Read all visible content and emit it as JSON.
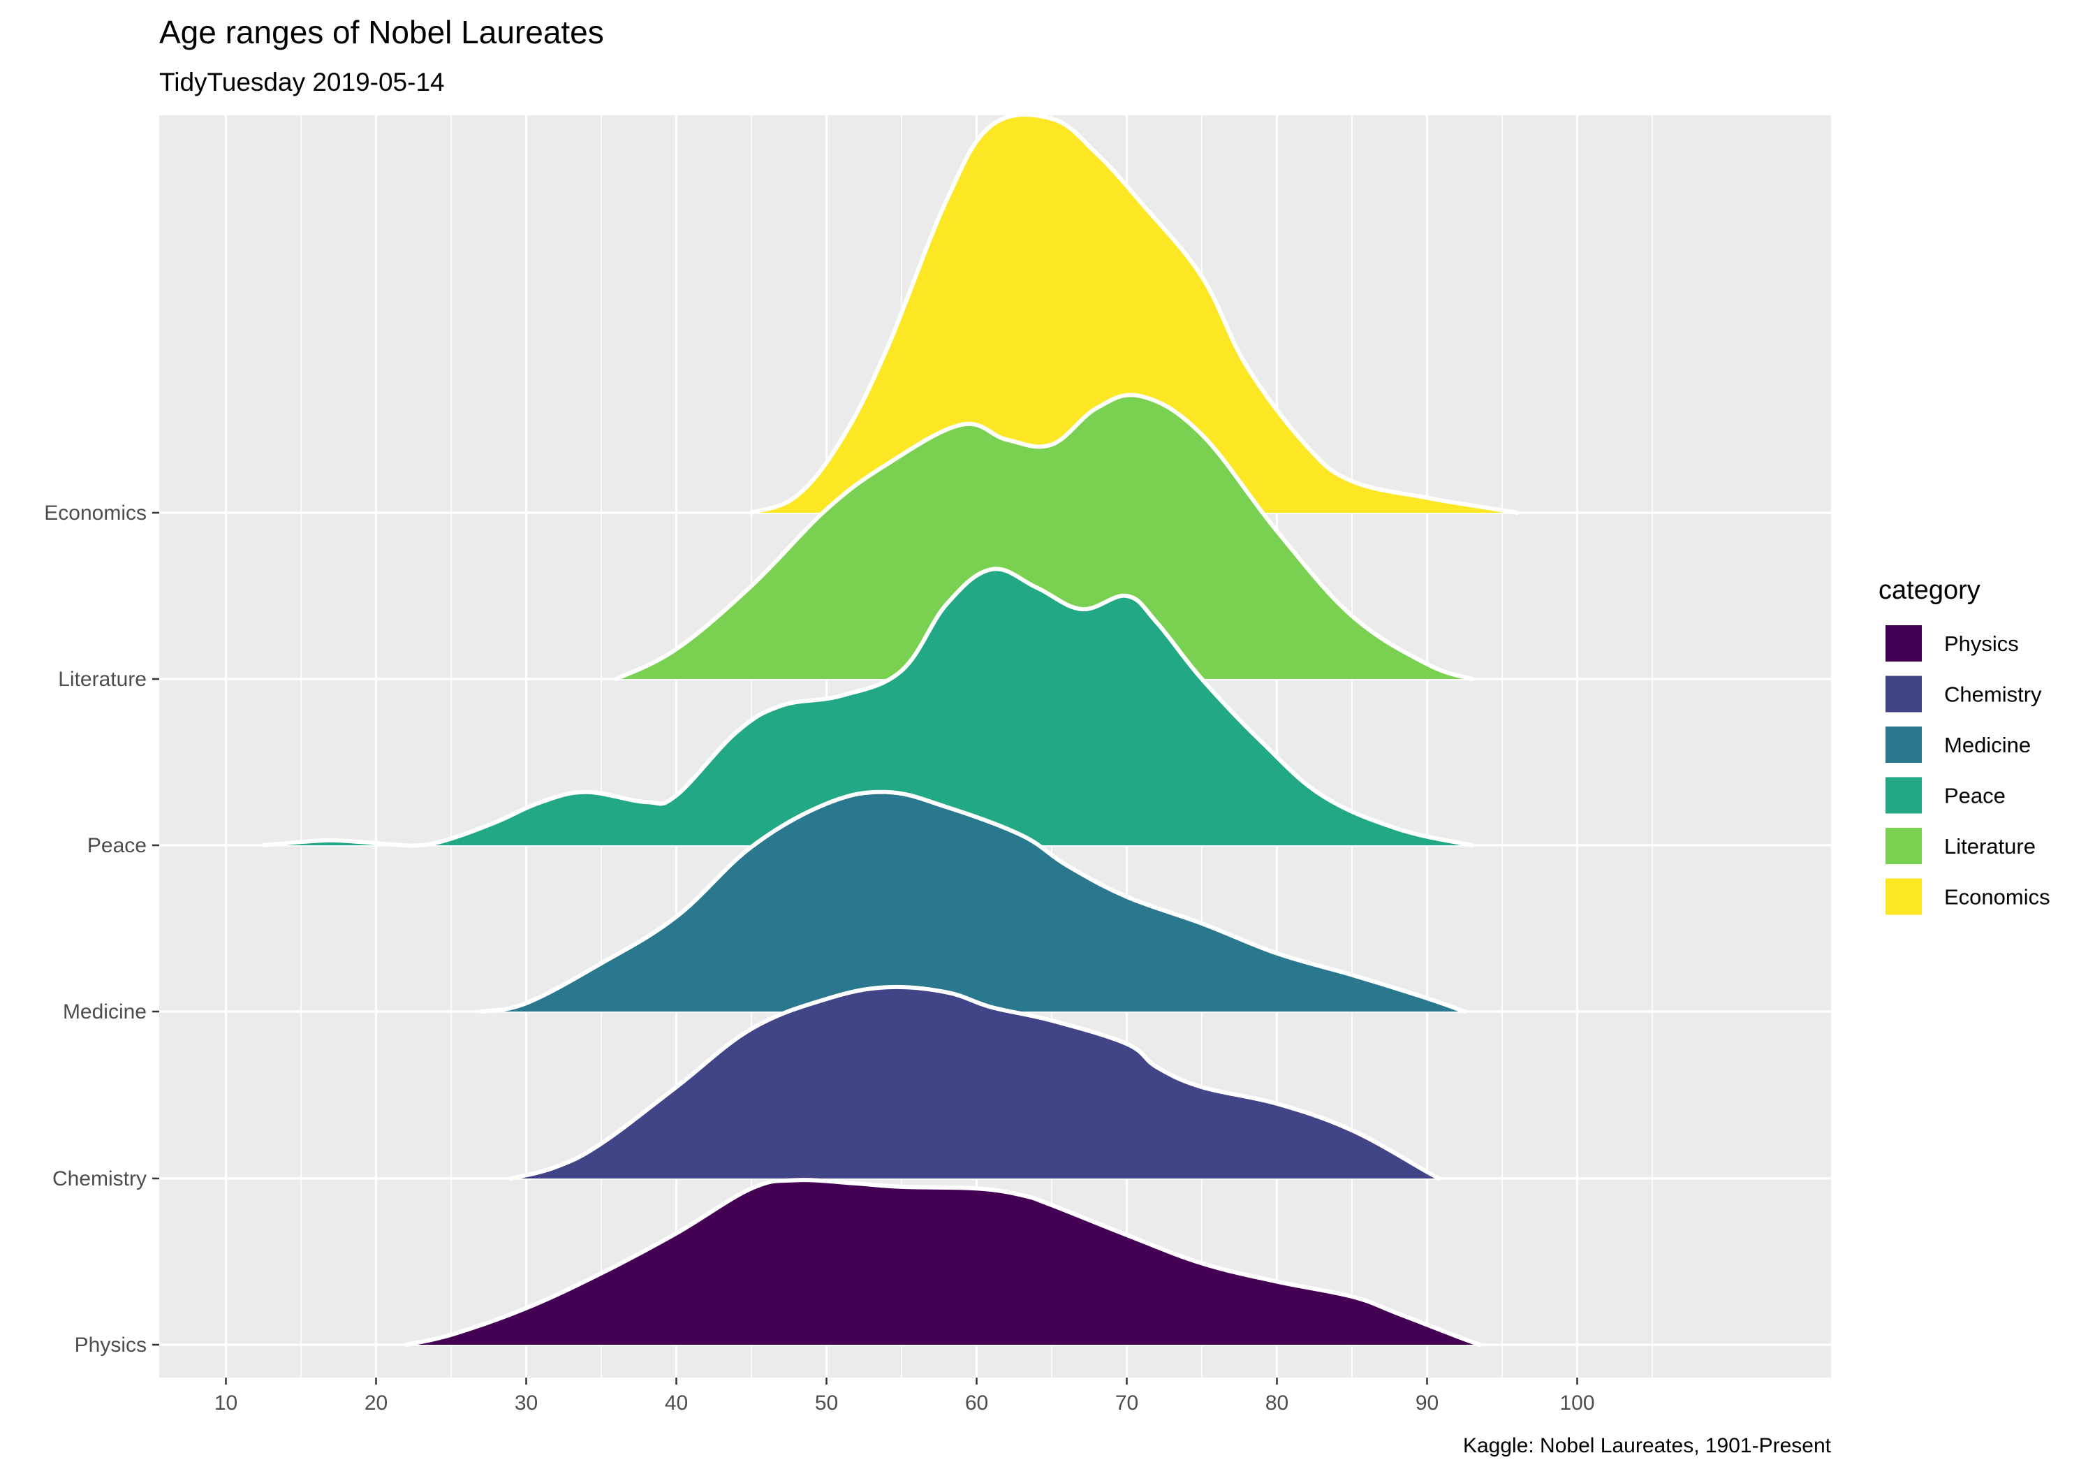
{
  "colors": {
    "panel": "#EBEBEB",
    "grid": "#FFFFFF",
    "outline": "#FFFFFF",
    "axis_text": "#4D4D4D"
  },
  "chart_data": {
    "type": "area",
    "subtype": "ridgeline-density",
    "title": "Age ranges of Nobel Laureates",
    "subtitle": "TidyTuesday 2019-05-14",
    "caption": "Kaggle: Nobel Laureates, 1901-Present",
    "xlabel": "",
    "ylabel": "",
    "xlim": [
      6,
      104
    ],
    "x_ticks": [
      "10",
      "20",
      "30",
      "40",
      "50",
      "60",
      "70",
      "80",
      "90",
      "100"
    ],
    "categories": [
      "Physics",
      "Chemistry",
      "Medicine",
      "Peace",
      "Literature",
      "Economics"
    ],
    "grid": true,
    "legend": {
      "title": "category",
      "position": "right",
      "entries": [
        "Physics",
        "Chemistry",
        "Medicine",
        "Peace",
        "Literature",
        "Economics"
      ]
    },
    "series": [
      {
        "name": "Physics",
        "color": "#440154",
        "x": [
          22,
          25,
          30,
          35,
          40,
          45,
          48,
          52,
          55,
          60,
          63,
          65,
          70,
          75,
          80,
          85,
          88,
          92,
          93.5
        ],
        "y": [
          0,
          0.06,
          0.22,
          0.43,
          0.67,
          0.94,
          0.99,
          0.97,
          0.95,
          0.94,
          0.9,
          0.84,
          0.66,
          0.49,
          0.38,
          0.29,
          0.19,
          0.05,
          0
        ]
      },
      {
        "name": "Chemistry",
        "color": "#414487",
        "x": [
          29,
          32,
          35,
          40,
          45,
          50,
          54,
          58,
          61,
          65,
          70,
          72,
          75,
          80,
          85,
          90,
          90.8
        ],
        "y": [
          0,
          0.07,
          0.21,
          0.55,
          0.9,
          1.08,
          1.15,
          1.12,
          1.03,
          0.95,
          0.81,
          0.67,
          0.55,
          0.45,
          0.29,
          0.04,
          0
        ]
      },
      {
        "name": "Medicine",
        "color": "#2A788E",
        "x": [
          27,
          30,
          35,
          40,
          45,
          50,
          54,
          58,
          63,
          66,
          70,
          75,
          80,
          85,
          90,
          92.5
        ],
        "y": [
          0,
          0.05,
          0.29,
          0.57,
          0.99,
          1.25,
          1.32,
          1.23,
          1.06,
          0.88,
          0.69,
          0.53,
          0.35,
          0.22,
          0.08,
          0
        ]
      },
      {
        "name": "Peace",
        "color": "#22A884",
        "x": [
          12.5,
          15,
          17,
          19,
          21,
          23,
          25,
          28,
          31,
          34,
          38,
          40,
          44,
          47,
          51,
          55,
          58,
          61,
          64,
          67,
          70,
          72,
          75,
          79,
          83,
          88,
          93
        ],
        "y": [
          0,
          0.02,
          0.03,
          0.02,
          0.005,
          0,
          0.04,
          0.14,
          0.26,
          0.32,
          0.26,
          0.3,
          0.68,
          0.84,
          0.9,
          1.05,
          1.45,
          1.66,
          1.55,
          1.42,
          1.5,
          1.34,
          1.0,
          0.62,
          0.3,
          0.1,
          0
        ]
      },
      {
        "name": "Literature",
        "color": "#7AD151",
        "x": [
          36,
          40,
          45,
          50,
          54,
          59,
          62,
          65,
          68,
          71,
          75,
          80,
          85,
          90,
          93
        ],
        "y": [
          0,
          0.18,
          0.56,
          1.02,
          1.29,
          1.53,
          1.44,
          1.41,
          1.63,
          1.7,
          1.47,
          0.89,
          0.38,
          0.09,
          0
        ]
      },
      {
        "name": "Economics",
        "color": "#FDE725",
        "x": [
          45,
          48,
          51,
          54,
          58,
          61,
          65,
          68,
          71,
          75,
          78,
          82,
          85,
          90,
          94,
          96
        ],
        "y": [
          0,
          0.1,
          0.44,
          0.98,
          1.88,
          2.33,
          2.37,
          2.16,
          1.86,
          1.42,
          0.88,
          0.4,
          0.19,
          0.09,
          0.03,
          0
        ]
      }
    ]
  }
}
